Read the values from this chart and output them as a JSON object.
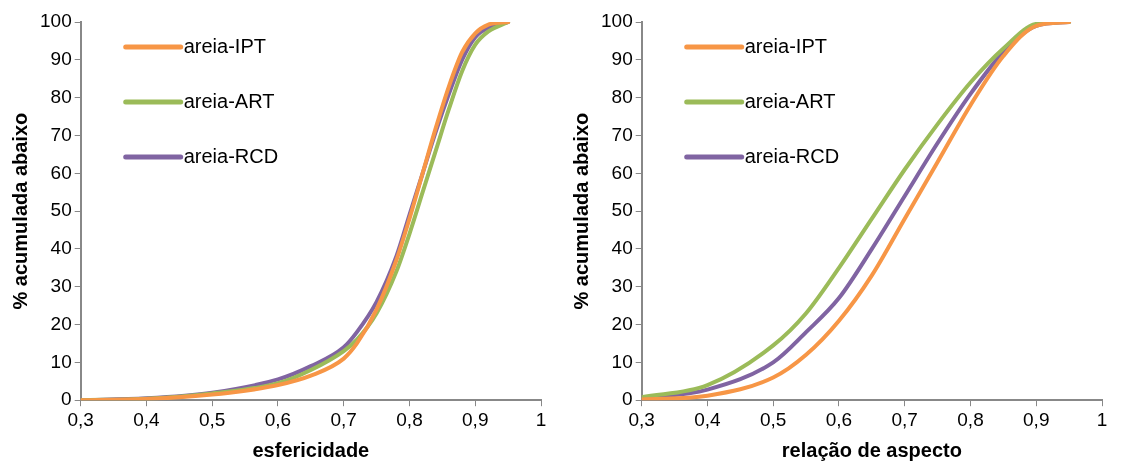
{
  "chart_data": [
    {
      "type": "line",
      "xlabel": "esfericidade",
      "ylabel": "% acumulada abaixo",
      "xlim": [
        0.3,
        1
      ],
      "ylim": [
        0,
        100
      ],
      "xticks": [
        {
          "value": 0.3,
          "label": "0,3"
        },
        {
          "value": 0.4,
          "label": "0,4"
        },
        {
          "value": 0.5,
          "label": "0,5"
        },
        {
          "value": 0.6,
          "label": "0,6"
        },
        {
          "value": 0.7,
          "label": "0,7"
        },
        {
          "value": 0.8,
          "label": "0,8"
        },
        {
          "value": 0.9,
          "label": "0,9"
        },
        1
      ],
      "yticks": [
        0,
        10,
        20,
        30,
        40,
        50,
        60,
        70,
        80,
        90,
        100
      ],
      "grid": false,
      "legend": "top left",
      "marker": "none",
      "line_style": "solid",
      "series": [
        {
          "name": "areia-IPT",
          "color": "#f79646",
          "x": [
            0.3,
            0.4,
            0.5,
            0.55,
            0.6,
            0.65,
            0.7,
            0.72,
            0.75,
            0.78,
            0.8,
            0.82,
            0.84,
            0.86,
            0.88,
            0.9,
            0.92,
            0.95
          ],
          "values": [
            0,
            0.3,
            1.5,
            2.5,
            4,
            6.5,
            11,
            15,
            24,
            37,
            48,
            60,
            72,
            83,
            92,
            97,
            99.3,
            100
          ]
        },
        {
          "name": "areia-ART",
          "color": "#9bbb59",
          "x": [
            0.3,
            0.4,
            0.5,
            0.6,
            0.65,
            0.7,
            0.72,
            0.75,
            0.78,
            0.8,
            0.82,
            0.84,
            0.86,
            0.88,
            0.9,
            0.92,
            0.95
          ],
          "values": [
            0,
            0.4,
            1.8,
            4.5,
            8,
            13,
            16,
            23,
            34,
            44,
            55,
            66,
            77,
            87,
            94,
            97.5,
            100
          ]
        },
        {
          "name": "areia-RCD",
          "color": "#8064a2",
          "x": [
            0.3,
            0.4,
            0.5,
            0.6,
            0.65,
            0.7,
            0.72,
            0.75,
            0.78,
            0.8,
            0.82,
            0.84,
            0.86,
            0.88,
            0.9,
            0.92,
            0.95
          ],
          "values": [
            0,
            0.5,
            2,
            5.5,
            9,
            14,
            18,
            26,
            38,
            49,
            60,
            71,
            81,
            90,
            96,
            98.5,
            100
          ]
        }
      ]
    },
    {
      "type": "line",
      "xlabel": "relação de aspecto",
      "ylabel": "% acumulada abaixo",
      "xlim": [
        0.3,
        1
      ],
      "ylim": [
        0,
        100
      ],
      "xticks": [
        {
          "value": 0.3,
          "label": "0,3"
        },
        {
          "value": 0.4,
          "label": "0,4"
        },
        {
          "value": 0.5,
          "label": "0,5"
        },
        {
          "value": 0.6,
          "label": "0,6"
        },
        {
          "value": 0.7,
          "label": "0,7"
        },
        {
          "value": 0.8,
          "label": "0,8"
        },
        {
          "value": 0.9,
          "label": "0,9"
        },
        1
      ],
      "yticks": [
        0,
        10,
        20,
        30,
        40,
        50,
        60,
        70,
        80,
        90,
        100
      ],
      "grid": false,
      "legend": "top left",
      "marker": "none",
      "line_style": "solid",
      "series": [
        {
          "name": "areia-IPT",
          "color": "#f79646",
          "x": [
            0.3,
            0.4,
            0.5,
            0.55,
            0.6,
            0.65,
            0.7,
            0.75,
            0.8,
            0.85,
            0.9,
            0.95
          ],
          "values": [
            0.2,
            1.2,
            6,
            12,
            21,
            33,
            48,
            63,
            78,
            91,
            99,
            100
          ]
        },
        {
          "name": "areia-ART",
          "color": "#9bbb59",
          "x": [
            0.3,
            0.4,
            0.5,
            0.55,
            0.6,
            0.65,
            0.7,
            0.75,
            0.8,
            0.85,
            0.9,
            0.95
          ],
          "values": [
            0.8,
            4,
            14.5,
            23,
            35,
            48,
            61,
            73,
            84,
            93,
            99.5,
            100
          ]
        },
        {
          "name": "areia-RCD",
          "color": "#8064a2",
          "x": [
            0.3,
            0.4,
            0.5,
            0.55,
            0.6,
            0.65,
            0.7,
            0.75,
            0.8,
            0.85,
            0.9,
            0.95
          ],
          "values": [
            0.5,
            2.8,
            10,
            18,
            27,
            40,
            54,
            68,
            81,
            92,
            99,
            100
          ]
        }
      ]
    }
  ]
}
